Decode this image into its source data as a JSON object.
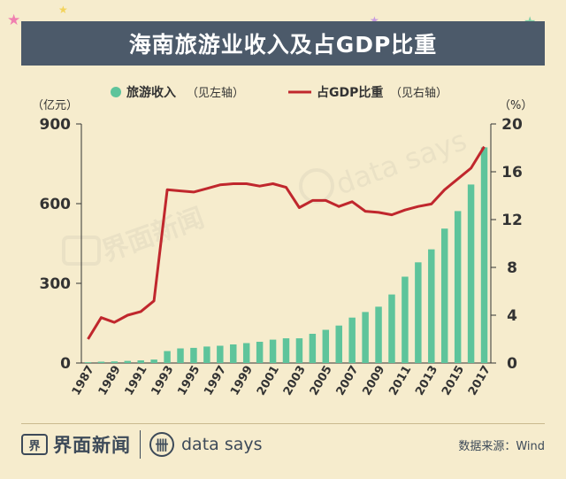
{
  "title": "海南旅游业收入及占GDP比重",
  "chart_data": {
    "type": "bar+line",
    "categories": [
      "1987",
      "1988",
      "1989",
      "1990",
      "1991",
      "1992",
      "1993",
      "1994",
      "1995",
      "1996",
      "1997",
      "1998",
      "1999",
      "2000",
      "2001",
      "2002",
      "2003",
      "2004",
      "2005",
      "2006",
      "2007",
      "2008",
      "2009",
      "2010",
      "2011",
      "2012",
      "2013",
      "2014",
      "2015",
      "2016",
      "2017"
    ],
    "x_tick_labels": [
      "1987",
      "1989",
      "1991",
      "1993",
      "1995",
      "1997",
      "1999",
      "2001",
      "2003",
      "2005",
      "2007",
      "2009",
      "2011",
      "2013",
      "2015",
      "2017"
    ],
    "series": [
      {
        "name": "旅游收入",
        "axis_note": "（见左轴）",
        "type": "bar",
        "axis": "left",
        "color": "#5ec49b",
        "values": [
          3,
          5,
          6,
          8,
          10,
          13,
          45,
          55,
          57,
          62,
          65,
          70,
          75,
          80,
          88,
          93,
          93,
          110,
          125,
          141,
          171,
          192,
          212,
          258,
          325,
          379,
          428,
          506,
          572,
          672,
          812
        ]
      },
      {
        "name": "占GDP比重",
        "axis_note": "（见右轴）",
        "type": "line",
        "axis": "right",
        "color": "#c0272d",
        "values": [
          2.0,
          3.8,
          3.4,
          4.0,
          4.3,
          5.2,
          14.5,
          14.4,
          14.3,
          14.6,
          14.9,
          15.0,
          15.0,
          14.8,
          15.0,
          14.7,
          13.0,
          13.6,
          13.6,
          13.1,
          13.5,
          12.7,
          12.6,
          12.4,
          12.8,
          13.1,
          13.3,
          14.5,
          15.4,
          16.3,
          18.1
        ]
      }
    ],
    "left_axis": {
      "unit": "（亿元）",
      "ylim": [
        0,
        900
      ],
      "ticks": [
        "0",
        "300",
        "600",
        "900"
      ]
    },
    "right_axis": {
      "unit": "（%）",
      "ylim": [
        0,
        20
      ],
      "ticks": [
        "0",
        "4",
        "8",
        "12",
        "16",
        "20"
      ]
    },
    "legend_position": "top",
    "watermark": [
      "界面新闻",
      "data says"
    ]
  },
  "footer": {
    "brand_icon": "界",
    "brand": "界面新闻",
    "datasays_icon": "卌",
    "datasays": "data says",
    "source": "数据来源：Wind"
  },
  "decor": {
    "stars": [
      "★",
      "★",
      "★",
      "★",
      "★"
    ]
  }
}
